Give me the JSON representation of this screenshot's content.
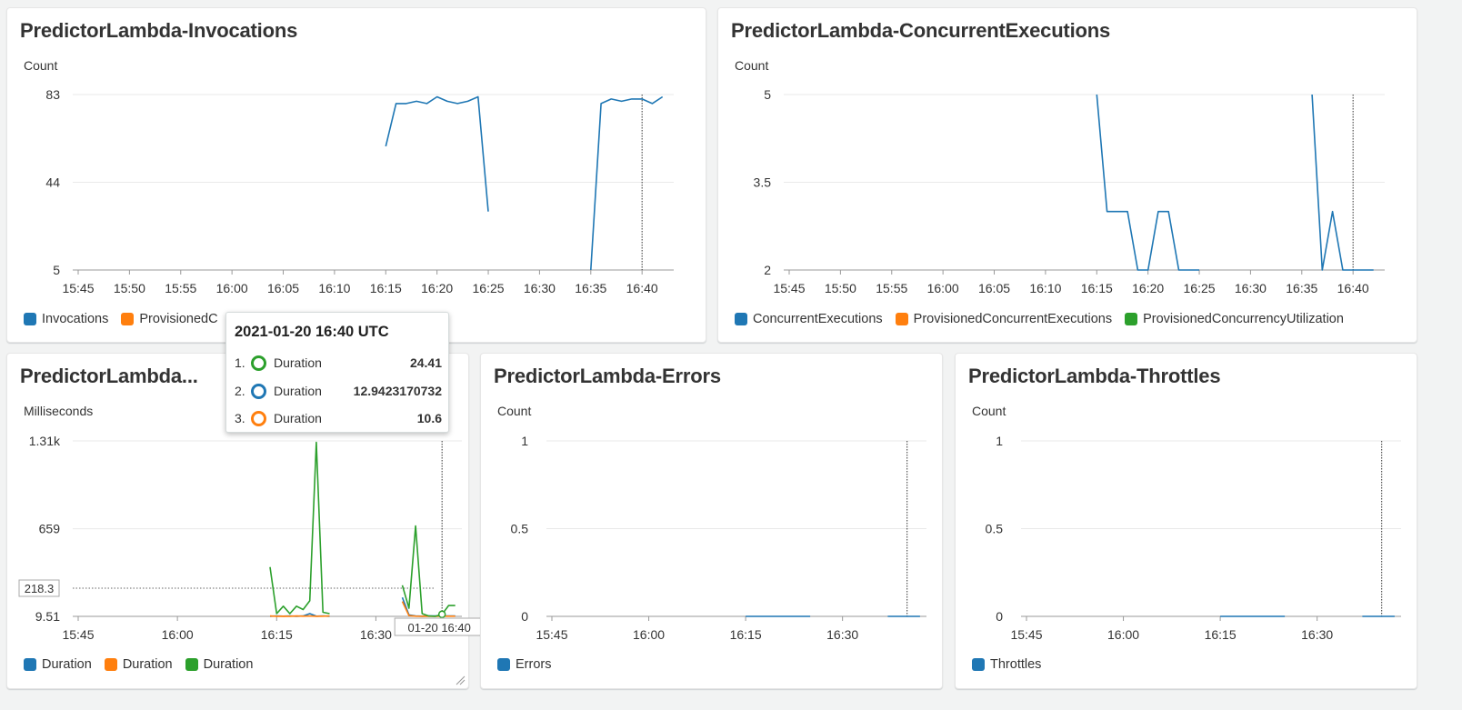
{
  "colors": {
    "blue": "#1f77b4",
    "orange": "#ff7f0e",
    "green": "#2ca02c"
  },
  "widgets": {
    "invocations": {
      "title": "PredictorLambda-Invocations",
      "unit": "Count",
      "legend": [
        {
          "label": "Invocations",
          "color": "#1f77b4"
        },
        {
          "label": "ProvisionedC",
          "color": "#ff7f0e"
        }
      ]
    },
    "concurrent": {
      "title": "PredictorLambda-ConcurrentExecutions",
      "unit": "Count",
      "legend": [
        {
          "label": "ConcurrentExecutions",
          "color": "#1f77b4"
        },
        {
          "label": "ProvisionedConcurrentExecutions",
          "color": "#ff7f0e"
        },
        {
          "label": "ProvisionedConcurrencyUtilization",
          "color": "#2ca02c"
        }
      ]
    },
    "duration": {
      "title": "PredictorLambda...",
      "unit": "Milliseconds",
      "legend": [
        {
          "label": "Duration",
          "color": "#1f77b4"
        },
        {
          "label": "Duration",
          "color": "#ff7f0e"
        },
        {
          "label": "Duration",
          "color": "#2ca02c"
        }
      ],
      "hover_value": "218.3",
      "hover_time": "01-20 16:40"
    },
    "errors": {
      "title": "PredictorLambda-Errors",
      "unit": "Count",
      "legend": [
        {
          "label": "Errors",
          "color": "#1f77b4"
        }
      ]
    },
    "throttles": {
      "title": "PredictorLambda-Throttles",
      "unit": "Count",
      "legend": [
        {
          "label": "Throttles",
          "color": "#1f77b4"
        }
      ]
    }
  },
  "tooltip": {
    "title": "2021-01-20 16:40 UTC",
    "rows": [
      {
        "index": "1.",
        "name": "Duration",
        "value": "24.41",
        "color": "#2ca02c"
      },
      {
        "index": "2.",
        "name": "Duration",
        "value": "12.9423170732",
        "color": "#1f77b4"
      },
      {
        "index": "3.",
        "name": "Duration",
        "value": "10.6",
        "color": "#ff7f0e"
      }
    ]
  },
  "chart_data": [
    {
      "id": "invocations",
      "type": "line",
      "title": "PredictorLambda-Invocations",
      "ylabel": "Count",
      "ylim": [
        5,
        83
      ],
      "yticks": [
        "83",
        "44",
        "5"
      ],
      "ytick_values": [
        83,
        44,
        5
      ],
      "xlim": [
        0,
        58
      ],
      "xticks": [
        "15:45",
        "15:50",
        "15:55",
        "16:00",
        "16:05",
        "16:10",
        "16:15",
        "16:20",
        "16:25",
        "16:30",
        "16:35",
        "16:40"
      ],
      "xtick_values": [
        0,
        5,
        10,
        15,
        20,
        25,
        30,
        35,
        40,
        45,
        50,
        55
      ],
      "cursor_x": 55,
      "series": [
        {
          "name": "Invocations",
          "color": "#1f77b4",
          "segments": [
            [
              [
                30,
                60
              ],
              [
                31,
                79
              ],
              [
                32,
                79
              ],
              [
                33,
                80
              ],
              [
                34,
                79
              ],
              [
                35,
                82
              ],
              [
                36,
                80
              ],
              [
                37,
                79
              ],
              [
                38,
                80
              ],
              [
                39,
                82
              ],
              [
                40,
                31
              ]
            ],
            [
              [
                50,
                5
              ],
              [
                51,
                79
              ],
              [
                52,
                81
              ],
              [
                53,
                80
              ],
              [
                54,
                81
              ],
              [
                55,
                81
              ],
              [
                56,
                79
              ],
              [
                57,
                82
              ]
            ]
          ]
        }
      ]
    },
    {
      "id": "concurrent",
      "type": "line",
      "title": "PredictorLambda-ConcurrentExecutions",
      "ylabel": "Count",
      "ylim": [
        2,
        5
      ],
      "yticks": [
        "5",
        "3.5",
        "2"
      ],
      "ytick_values": [
        5,
        3.5,
        2
      ],
      "xlim": [
        0,
        58
      ],
      "xticks": [
        "15:45",
        "15:50",
        "15:55",
        "16:00",
        "16:05",
        "16:10",
        "16:15",
        "16:20",
        "16:25",
        "16:30",
        "16:35",
        "16:40"
      ],
      "xtick_values": [
        0,
        5,
        10,
        15,
        20,
        25,
        30,
        35,
        40,
        45,
        50,
        55
      ],
      "cursor_x": 55,
      "series": [
        {
          "name": "ConcurrentExecutions",
          "color": "#1f77b4",
          "segments": [
            [
              [
                30,
                5
              ],
              [
                31,
                3
              ],
              [
                32,
                3
              ],
              [
                33,
                3
              ],
              [
                34,
                2
              ],
              [
                35,
                2
              ],
              [
                36,
                3
              ],
              [
                37,
                3
              ],
              [
                38,
                2
              ],
              [
                39,
                2
              ],
              [
                40,
                2
              ]
            ],
            [
              [
                51,
                5
              ],
              [
                52,
                2
              ],
              [
                53,
                3
              ],
              [
                54,
                2
              ],
              [
                55,
                2
              ],
              [
                56,
                2
              ],
              [
                57,
                2
              ]
            ]
          ]
        }
      ]
    },
    {
      "id": "duration",
      "type": "line",
      "title": "PredictorLambda...",
      "ylabel": "Milliseconds",
      "ylim": [
        9.51,
        1310
      ],
      "yticks": [
        "1.31k",
        "659",
        "9.51"
      ],
      "ytick_values": [
        1310,
        659,
        9.51
      ],
      "xlim": [
        0,
        58
      ],
      "xticks": [
        "15:45",
        "16:00",
        "16:15",
        "16:30"
      ],
      "xtick_values": [
        0,
        15,
        30,
        45
      ],
      "cursor_x": 55,
      "hover_y": 218.3,
      "series": [
        {
          "name": "Duration",
          "color": "#1f77b4",
          "segments": [
            [
              [
                29,
                10
              ],
              [
                30,
                12
              ],
              [
                31,
                11
              ],
              [
                32,
                12
              ],
              [
                33,
                10
              ],
              [
                34,
                12
              ],
              [
                35,
                30
              ],
              [
                36,
                11
              ],
              [
                37,
                12
              ],
              [
                38,
                10
              ]
            ],
            [
              [
                49,
                150
              ],
              [
                50,
                20
              ],
              [
                51,
                12
              ],
              [
                52,
                11
              ],
              [
                53,
                12
              ],
              [
                54,
                13
              ],
              [
                55,
                13
              ],
              [
                56,
                12
              ],
              [
                57,
                12
              ]
            ]
          ]
        },
        {
          "name": "Duration",
          "color": "#ff7f0e",
          "segments": [
            [
              [
                29,
                12
              ],
              [
                30,
                10
              ],
              [
                31,
                11
              ],
              [
                32,
                10
              ],
              [
                33,
                12
              ],
              [
                34,
                11
              ],
              [
                35,
                12
              ],
              [
                36,
                10
              ],
              [
                37,
                11
              ],
              [
                38,
                12
              ]
            ],
            [
              [
                49,
                120
              ],
              [
                50,
                15
              ],
              [
                51,
                11
              ],
              [
                52,
                10
              ],
              [
                53,
                11
              ],
              [
                54,
                10
              ],
              [
                55,
                10.6
              ],
              [
                56,
                11
              ],
              [
                57,
                11
              ]
            ]
          ]
        },
        {
          "name": "Duration",
          "color": "#2ca02c",
          "segments": [
            [
              [
                29,
                375
              ],
              [
                30,
                30
              ],
              [
                31,
                85
              ],
              [
                32,
                30
              ],
              [
                33,
                85
              ],
              [
                34,
                60
              ],
              [
                35,
                125
              ],
              [
                36,
                1300
              ],
              [
                37,
                40
              ],
              [
                38,
                30
              ]
            ],
            [
              [
                49,
                240
              ],
              [
                50,
                70
              ],
              [
                51,
                680
              ],
              [
                52,
                30
              ],
              [
                53,
                12
              ],
              [
                54,
                10
              ],
              [
                55,
                24.41
              ],
              [
                56,
                90
              ],
              [
                57,
                90
              ]
            ]
          ]
        }
      ]
    },
    {
      "id": "errors",
      "type": "line",
      "title": "PredictorLambda-Errors",
      "ylabel": "Count",
      "ylim": [
        0,
        1
      ],
      "yticks": [
        "1",
        "0.5",
        "0"
      ],
      "ytick_values": [
        1,
        0.5,
        0
      ],
      "xlim": [
        0,
        58
      ],
      "xticks": [
        "15:45",
        "16:00",
        "16:15",
        "16:30"
      ],
      "xtick_values": [
        0,
        15,
        30,
        45
      ],
      "cursor_x": 55,
      "series": [
        {
          "name": "Errors",
          "color": "#1f77b4",
          "segments": [
            [
              [
                30,
                0
              ],
              [
                35,
                0
              ],
              [
                40,
                0
              ]
            ],
            [
              [
                52,
                0
              ],
              [
                55,
                0
              ],
              [
                57,
                0
              ]
            ]
          ]
        }
      ]
    },
    {
      "id": "throttles",
      "type": "line",
      "title": "PredictorLambda-Throttles",
      "ylabel": "Count",
      "ylim": [
        0,
        1
      ],
      "yticks": [
        "1",
        "0.5",
        "0"
      ],
      "ytick_values": [
        1,
        0.5,
        0
      ],
      "xlim": [
        0,
        58
      ],
      "xticks": [
        "15:45",
        "16:00",
        "16:15",
        "16:30"
      ],
      "xtick_values": [
        0,
        15,
        30,
        45
      ],
      "cursor_x": 55,
      "series": [
        {
          "name": "Throttles",
          "color": "#1f77b4",
          "segments": [
            [
              [
                30,
                0
              ],
              [
                35,
                0
              ],
              [
                40,
                0
              ]
            ],
            [
              [
                52,
                0
              ],
              [
                55,
                0
              ],
              [
                57,
                0
              ]
            ]
          ]
        }
      ]
    }
  ]
}
